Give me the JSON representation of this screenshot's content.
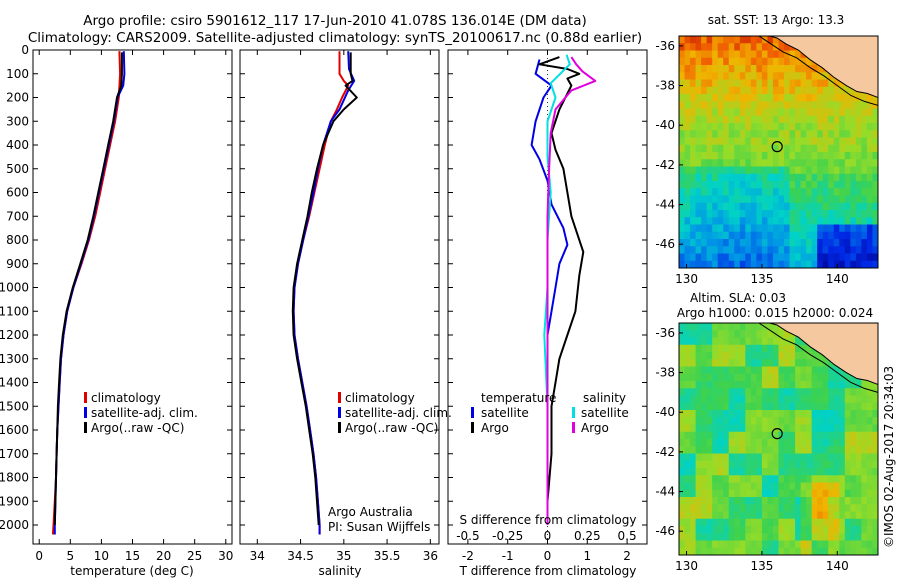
{
  "title": {
    "line1": "Argo profile: csiro 5901612_117 17-Jun-2010 41.078S 136.014E (DM data)",
    "line2": "Climatology: CARS2009. Satellite-adjusted climatology: synTS_20100617.nc (0.88d earlier)"
  },
  "colors": {
    "climatology": "#e00000",
    "satellite_adj": "#0000e6",
    "argo": "#000000",
    "salinity_satellite": "#00e0e0",
    "salinity_argo": "#e000e0",
    "land": "#f5c8a0"
  },
  "chart_data": [
    {
      "type": "line",
      "id": "temperature",
      "xlabel": "temperature (deg C)",
      "xlim": [
        -1,
        31
      ],
      "xticks": [
        0,
        5,
        10,
        15,
        20,
        25,
        30
      ],
      "ylim": [
        2080,
        0
      ],
      "yticks": [
        0,
        100,
        200,
        300,
        400,
        500,
        600,
        700,
        800,
        900,
        1000,
        1100,
        1200,
        1300,
        1400,
        1500,
        1600,
        1700,
        1800,
        1900,
        2000
      ],
      "legend": [
        "climatology",
        "satellite-adj. clim.",
        "Argo(..raw -QC)"
      ],
      "series": [
        {
          "name": "climatology",
          "color_key": "climatology",
          "points": [
            [
              12.9,
              5
            ],
            [
              13.0,
              100
            ],
            [
              12.8,
              200
            ],
            [
              12.2,
              300
            ],
            [
              11.4,
              400
            ],
            [
              10.6,
              500
            ],
            [
              9.8,
              600
            ],
            [
              9.0,
              700
            ],
            [
              8.0,
              800
            ],
            [
              6.8,
              900
            ],
            [
              5.5,
              1000
            ],
            [
              4.5,
              1100
            ],
            [
              3.9,
              1200
            ],
            [
              3.5,
              1300
            ],
            [
              3.3,
              1400
            ],
            [
              3.1,
              1500
            ],
            [
              2.9,
              1600
            ],
            [
              2.8,
              1700
            ],
            [
              2.7,
              1800
            ],
            [
              2.5,
              1900
            ],
            [
              2.3,
              2000
            ],
            [
              2.2,
              2040
            ]
          ]
        },
        {
          "name": "satellite-adj. clim.",
          "color_key": "satellite_adj",
          "points": [
            [
              13.6,
              5
            ],
            [
              13.7,
              100
            ],
            [
              13.5,
              150
            ],
            [
              12.6,
              200
            ],
            [
              12.0,
              300
            ],
            [
              11.2,
              400
            ],
            [
              10.4,
              500
            ],
            [
              9.6,
              600
            ],
            [
              8.8,
              700
            ],
            [
              7.9,
              800
            ],
            [
              6.7,
              900
            ],
            [
              5.5,
              1000
            ],
            [
              4.5,
              1100
            ],
            [
              3.9,
              1200
            ],
            [
              3.5,
              1300
            ],
            [
              3.3,
              1400
            ],
            [
              3.1,
              1500
            ],
            [
              2.9,
              1600
            ],
            [
              2.8,
              1700
            ],
            [
              2.7,
              1800
            ],
            [
              2.6,
              1900
            ],
            [
              2.5,
              2000
            ],
            [
              2.5,
              2040
            ]
          ]
        },
        {
          "name": "Argo(..raw -QC)",
          "color_key": "argo",
          "points": [
            [
              13.3,
              10
            ],
            [
              13.3,
              100
            ],
            [
              13.2,
              150
            ],
            [
              12.5,
              200
            ],
            [
              11.9,
              300
            ],
            [
              11.1,
              400
            ],
            [
              10.3,
              500
            ],
            [
              9.5,
              600
            ],
            [
              8.7,
              700
            ],
            [
              7.8,
              800
            ],
            [
              6.6,
              900
            ],
            [
              5.4,
              1000
            ],
            [
              4.4,
              1100
            ],
            [
              3.8,
              1200
            ],
            [
              3.4,
              1300
            ],
            [
              3.2,
              1400
            ],
            [
              3.0,
              1500
            ],
            [
              2.9,
              1600
            ],
            [
              2.8,
              1700
            ],
            [
              2.7,
              1800
            ],
            [
              2.6,
              1900
            ],
            [
              2.5,
              2000
            ]
          ]
        }
      ]
    },
    {
      "type": "line",
      "id": "salinity",
      "xlabel": "salinity",
      "xlim": [
        33.8,
        36.1
      ],
      "xticks": [
        34,
        34.5,
        35,
        35.5,
        36
      ],
      "xtick_labels": [
        "34",
        "34.5",
        "35",
        "35.5",
        "36"
      ],
      "ylim": [
        2080,
        0
      ],
      "legend": [
        "climatology",
        "satellite-adj. clim.",
        "Argo(..raw -QC)"
      ],
      "annotation": [
        "Argo Australia",
        "PI: Susan Wijffels"
      ],
      "series": [
        {
          "name": "climatology",
          "color_key": "climatology",
          "points": [
            [
              34.95,
              5
            ],
            [
              34.95,
              100
            ],
            [
              35.0,
              130
            ],
            [
              35.05,
              150
            ],
            [
              34.98,
              200
            ],
            [
              34.92,
              250
            ],
            [
              34.85,
              300
            ],
            [
              34.78,
              400
            ],
            [
              34.72,
              500
            ],
            [
              34.66,
              600
            ],
            [
              34.6,
              700
            ],
            [
              34.53,
              800
            ],
            [
              34.47,
              900
            ],
            [
              34.43,
              1000
            ],
            [
              34.42,
              1100
            ],
            [
              34.43,
              1200
            ],
            [
              34.47,
              1300
            ],
            [
              34.52,
              1400
            ],
            [
              34.57,
              1500
            ],
            [
              34.61,
              1600
            ],
            [
              34.65,
              1700
            ],
            [
              34.68,
              1800
            ],
            [
              34.7,
              1900
            ],
            [
              34.72,
              2000
            ],
            [
              34.72,
              2040
            ]
          ]
        },
        {
          "name": "satellite-adj. clim.",
          "color_key": "satellite_adj",
          "points": [
            [
              35.05,
              5
            ],
            [
              35.06,
              80
            ],
            [
              35.12,
              130
            ],
            [
              35.05,
              170
            ],
            [
              34.95,
              250
            ],
            [
              34.85,
              300
            ],
            [
              34.76,
              400
            ],
            [
              34.7,
              500
            ],
            [
              34.65,
              600
            ],
            [
              34.59,
              700
            ],
            [
              34.53,
              800
            ],
            [
              34.47,
              900
            ],
            [
              34.43,
              1000
            ],
            [
              34.42,
              1100
            ],
            [
              34.43,
              1200
            ],
            [
              34.47,
              1300
            ],
            [
              34.52,
              1400
            ],
            [
              34.57,
              1500
            ],
            [
              34.61,
              1600
            ],
            [
              34.65,
              1700
            ],
            [
              34.68,
              1800
            ],
            [
              34.7,
              1900
            ],
            [
              34.72,
              2000
            ],
            [
              34.72,
              2040
            ]
          ]
        },
        {
          "name": "Argo(..raw -QC)",
          "color_key": "argo",
          "points": [
            [
              35.08,
              10
            ],
            [
              35.08,
              100
            ],
            [
              35.1,
              130
            ],
            [
              35.02,
              150
            ],
            [
              35.15,
              200
            ],
            [
              35.0,
              250
            ],
            [
              34.88,
              300
            ],
            [
              34.76,
              400
            ],
            [
              34.69,
              500
            ],
            [
              34.63,
              600
            ],
            [
              34.58,
              700
            ],
            [
              34.52,
              800
            ],
            [
              34.46,
              900
            ],
            [
              34.42,
              1000
            ],
            [
              34.41,
              1100
            ],
            [
              34.42,
              1200
            ],
            [
              34.46,
              1300
            ],
            [
              34.51,
              1400
            ],
            [
              34.56,
              1500
            ],
            [
              34.6,
              1600
            ],
            [
              34.64,
              1700
            ],
            [
              34.67,
              1800
            ],
            [
              34.69,
              1900
            ],
            [
              34.71,
              2000
            ]
          ]
        }
      ]
    },
    {
      "type": "line",
      "id": "difference",
      "xlabel": "T difference from climatology",
      "xlabel_secondary": "S difference from climatology",
      "xlim": [
        -2.5,
        2.5
      ],
      "xticks": [
        -2,
        -1,
        0,
        1,
        2
      ],
      "xtick_labels": [
        "-2",
        "-1",
        "0",
        "1",
        "2"
      ],
      "xticks_secondary": [
        -0.5,
        -0.25,
        0,
        0.25,
        0.5
      ],
      "xtick_labels_secondary": [
        "-0.5",
        "-0.25",
        "0",
        "0.25",
        "0.5"
      ],
      "ylim": [
        2080,
        0
      ],
      "legend_temperature": {
        "header": "temperature",
        "items": [
          "satellite",
          "Argo"
        ]
      },
      "legend_salinity": {
        "header": "salinity",
        "items": [
          "satellite",
          "Argo"
        ]
      },
      "series": [
        {
          "name": "T satellite",
          "color_key": "satellite_adj",
          "points": [
            [
              -0.2,
              40
            ],
            [
              -0.3,
              100
            ],
            [
              0.1,
              150
            ],
            [
              -0.1,
              200
            ],
            [
              -0.3,
              300
            ],
            [
              -0.4,
              400
            ],
            [
              -0.2,
              460
            ],
            [
              0.0,
              550
            ],
            [
              0.1,
              650
            ],
            [
              0.4,
              750
            ],
            [
              0.5,
              820
            ],
            [
              0.3,
              900
            ],
            [
              0.2,
              1000
            ],
            [
              0.1,
              1100
            ],
            [
              0.0,
              1200
            ],
            [
              0.0,
              1300
            ],
            [
              0.0,
              1500
            ],
            [
              0.0,
              1700
            ],
            [
              0.0,
              1900
            ],
            [
              0.0,
              2000
            ]
          ]
        },
        {
          "name": "T Argo",
          "color_key": "argo",
          "points": [
            [
              0.3,
              30
            ],
            [
              -0.2,
              60
            ],
            [
              0.5,
              80
            ],
            [
              0.8,
              100
            ],
            [
              0.5,
              120
            ],
            [
              0.6,
              150
            ],
            [
              0.3,
              250
            ],
            [
              0.1,
              350
            ],
            [
              0.2,
              420
            ],
            [
              0.4,
              500
            ],
            [
              0.5,
              600
            ],
            [
              0.6,
              700
            ],
            [
              0.9,
              850
            ],
            [
              0.8,
              950
            ],
            [
              0.7,
              1100
            ],
            [
              0.5,
              1200
            ],
            [
              0.3,
              1300
            ],
            [
              0.2,
              1400
            ],
            [
              0.1,
              1500
            ],
            [
              0.1,
              1700
            ],
            [
              0.0,
              1900
            ],
            [
              0.0,
              2000
            ]
          ]
        },
        {
          "name": "S satellite",
          "color_key": "salinity_satellite",
          "points": [
            [
              0.12,
              20
            ],
            [
              0.14,
              60
            ],
            [
              0.08,
              100
            ],
            [
              0.02,
              140
            ],
            [
              0.05,
              200
            ],
            [
              0.0,
              300
            ],
            [
              0.0,
              450
            ],
            [
              0.02,
              600
            ],
            [
              0.0,
              800
            ],
            [
              0.0,
              1000
            ],
            [
              -0.02,
              1200
            ],
            [
              0.0,
              1500
            ],
            [
              0.0,
              1800
            ],
            [
              0.0,
              2000
            ]
          ]
        },
        {
          "name": "S Argo",
          "color_key": "salinity_argo",
          "points": [
            [
              0.15,
              30
            ],
            [
              0.18,
              60
            ],
            [
              0.22,
              90
            ],
            [
              0.3,
              130
            ],
            [
              0.15,
              170
            ],
            [
              0.05,
              250
            ],
            [
              0.02,
              350
            ],
            [
              0.01,
              500
            ],
            [
              0.0,
              700
            ],
            [
              0.0,
              1000
            ],
            [
              0.0,
              1500
            ],
            [
              0.0,
              2000
            ]
          ]
        }
      ]
    },
    {
      "type": "heatmap",
      "id": "sst_map",
      "title": "sat. SST: 13 Argo: 13.3",
      "xlim": [
        129.5,
        142.7
      ],
      "ylim": [
        -47.2,
        -35.5
      ],
      "xticks": [
        130,
        135,
        140
      ],
      "yticks": [
        -36,
        -38,
        -40,
        -42,
        -44,
        -46
      ],
      "marker": {
        "lon": 136.014,
        "lat": -41.078
      },
      "field": "sst"
    },
    {
      "type": "heatmap",
      "id": "sla_map",
      "title": "Altim. SLA: 0.03",
      "subtitle": "Argo h1000: 0.015 h2000: 0.024",
      "xlim": [
        129.5,
        142.7
      ],
      "ylim": [
        -47.2,
        -35.5
      ],
      "xticks": [
        130,
        135,
        140
      ],
      "yticks": [
        -36,
        -38,
        -40,
        -42,
        -44,
        -46
      ],
      "marker": {
        "lon": 136.014,
        "lat": -41.078
      },
      "field": "sla"
    }
  ],
  "credit": "©IMOS 02-Aug-2017 20:34:03"
}
